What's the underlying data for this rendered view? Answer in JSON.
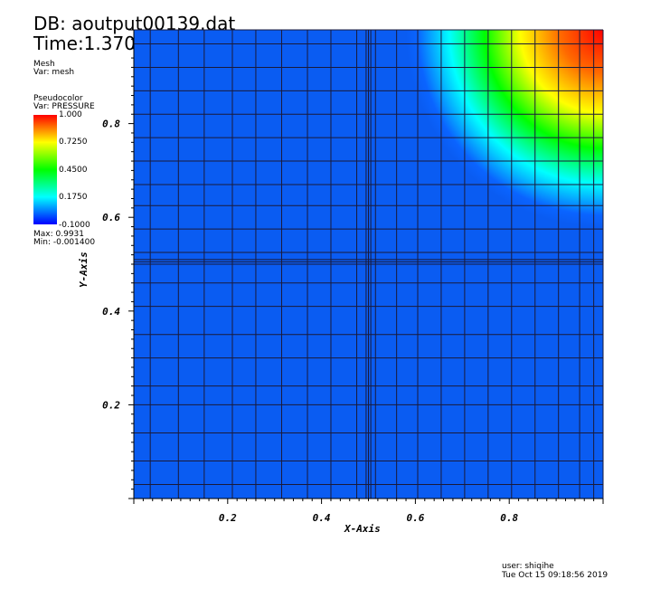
{
  "header": {
    "db": "DB: aoutput00139.dat",
    "time": "Time:1.3702"
  },
  "legend": {
    "mesh_title": "Mesh",
    "mesh_var": "Var: mesh",
    "pc_title": "Pseudocolor",
    "pc_var": "Var: PRESSURE",
    "ticks": [
      "1.000",
      "0.7250",
      "0.4500",
      "0.1750",
      "-0.1000"
    ],
    "max_text": "Max:  0.9931",
    "min_text": "Min: -0.001400",
    "colors": [
      "#ff0000",
      "#ffff00",
      "#00ff00",
      "#00ffff",
      "#0000ff"
    ]
  },
  "footer": {
    "user": "user: shiqihe",
    "date": "Tue Oct 15 09:18:56 2019"
  },
  "chart_data": {
    "type": "heatmap",
    "title": "",
    "xlabel": "X-Axis",
    "ylabel": "Y-Axis",
    "xlim": [
      0,
      1
    ],
    "ylim": [
      0,
      1
    ],
    "x_ticks": [
      "0.2",
      "0.4",
      "0.6",
      "0.8"
    ],
    "y_ticks": [
      "0.2",
      "0.4",
      "0.6",
      "0.8"
    ],
    "x_tick_values": [
      0.2,
      0.4,
      0.6,
      0.8
    ],
    "y_tick_values": [
      0.2,
      0.4,
      0.6,
      0.8
    ],
    "variable": "PRESSURE",
    "color_range": [
      -0.1,
      1.0
    ],
    "value_max": 0.9931,
    "value_min": -0.0014,
    "field_peak_corner": [
      1,
      1
    ],
    "field_radius": 0.42,
    "mesh_x": [
      0,
      0.035,
      0.095,
      0.15,
      0.21,
      0.26,
      0.315,
      0.37,
      0.42,
      0.475,
      0.495,
      0.5,
      0.505,
      0.515,
      0.56,
      0.605,
      0.655,
      0.705,
      0.755,
      0.805,
      0.855,
      0.905,
      0.95,
      0.98,
      1.0
    ],
    "mesh_y": [
      0,
      0.03,
      0.08,
      0.14,
      0.2,
      0.24,
      0.3,
      0.35,
      0.41,
      0.46,
      0.5,
      0.505,
      0.51,
      0.525,
      0.575,
      0.625,
      0.67,
      0.72,
      0.77,
      0.82,
      0.87,
      0.92,
      0.97,
      1.0
    ]
  }
}
